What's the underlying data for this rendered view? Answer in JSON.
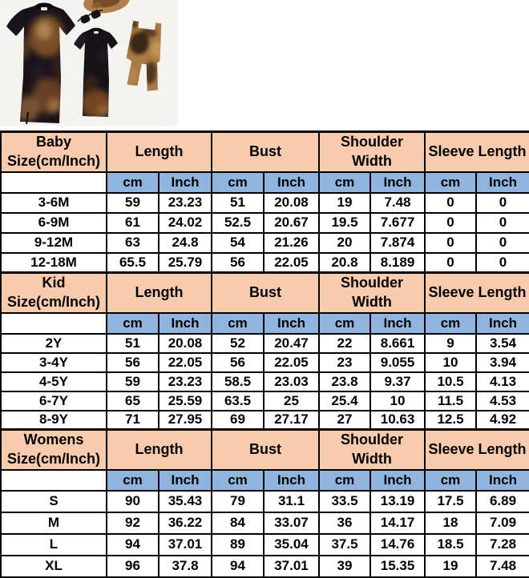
{
  "photo": {
    "description": "Flat-lay photo of family matching tie-dye outfits: adult short-sleeve midi dress, kid short-sleeve dress, baby sleeveless jumpsuit, sunglasses and a straw hat",
    "items": [
      "hat",
      "sunglasses",
      "adult-dress",
      "kid-dress",
      "baby-jumpsuit"
    ]
  },
  "size_chart": {
    "measure_headers": [
      "Length",
      "Bust",
      "Shoulder Width",
      "Sleeve Length"
    ],
    "sub_headers": [
      "cm",
      "Inch"
    ],
    "sections": [
      {
        "title": "Baby Size(cm/Inch)",
        "title_line1": "Baby",
        "title_line2": "Size(cm/Inch)",
        "rows": [
          {
            "size": "3-6M",
            "values": [
              "59",
              "23.23",
              "51",
              "20.08",
              "19",
              "7.48",
              "0",
              "0"
            ]
          },
          {
            "size": "6-9M",
            "values": [
              "61",
              "24.02",
              "52.5",
              "20.67",
              "19.5",
              "7.677",
              "0",
              "0"
            ]
          },
          {
            "size": "9-12M",
            "values": [
              "63",
              "24.8",
              "54",
              "21.26",
              "20",
              "7.874",
              "0",
              "0"
            ]
          },
          {
            "size": "12-18M",
            "values": [
              "65.5",
              "25.79",
              "56",
              "22.05",
              "20.8",
              "8.189",
              "0",
              "0"
            ]
          }
        ]
      },
      {
        "title": "Kid Size(cm/Inch)",
        "title_line1": "Kid",
        "title_line2": "Size(cm/Inch)",
        "rows": [
          {
            "size": "2Y",
            "values": [
              "51",
              "20.08",
              "52",
              "20.47",
              "22",
              "8.661",
              "9",
              "3.54"
            ]
          },
          {
            "size": "3-4Y",
            "values": [
              "56",
              "22.05",
              "56",
              "22.05",
              "23",
              "9.055",
              "10",
              "3.94"
            ]
          },
          {
            "size": "4-5Y",
            "values": [
              "59",
              "23.23",
              "58.5",
              "23.03",
              "23.8",
              "9.37",
              "10.5",
              "4.13"
            ]
          },
          {
            "size": "6-7Y",
            "values": [
              "65",
              "25.59",
              "63.5",
              "25",
              "25.4",
              "10",
              "11.5",
              "4.53"
            ]
          },
          {
            "size": "8-9Y",
            "values": [
              "71",
              "27.95",
              "69",
              "27.17",
              "27",
              "10.63",
              "12.5",
              "4.92"
            ]
          }
        ]
      },
      {
        "title": "Womens Size(cm/Inch)",
        "title_line1": "Womens",
        "title_line2": "Size(cm/Inch)",
        "rows": [
          {
            "size": "S",
            "values": [
              "90",
              "35.43",
              "79",
              "31.1",
              "33.5",
              "13.19",
              "17.5",
              "6.89"
            ]
          },
          {
            "size": "M",
            "values": [
              "92",
              "36.22",
              "84",
              "33.07",
              "36",
              "14.17",
              "18",
              "7.09"
            ]
          },
          {
            "size": "L",
            "values": [
              "94",
              "37.01",
              "89",
              "35.04",
              "37.5",
              "14.76",
              "18.5",
              "7.28"
            ]
          },
          {
            "size": "XL",
            "values": [
              "96",
              "37.8",
              "94",
              "37.01",
              "39",
              "15.35",
              "19",
              "7.48"
            ]
          }
        ]
      }
    ]
  },
  "colors": {
    "section_header_bg": "#f8cbad",
    "unit_row_bg": "#8fb4dd",
    "table_border": "#000000",
    "photo_bg": "#f5f3f0"
  }
}
